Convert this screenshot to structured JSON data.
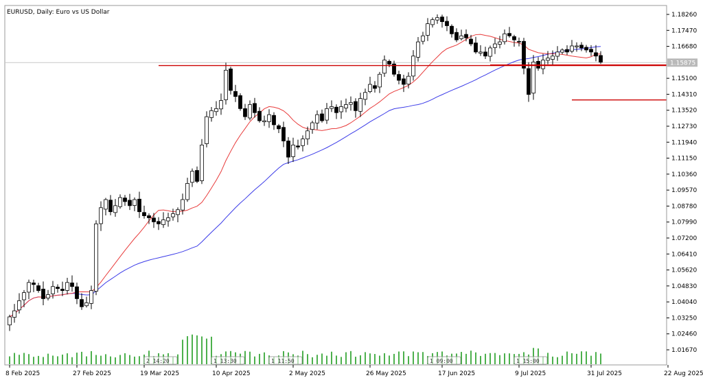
{
  "chart_data": {
    "type": "candlestick",
    "title": "EURUSD, Daily:  Euro vs US Dollar",
    "y_ticks": [
      "1.18260",
      "1.17470",
      "1.16680",
      "1.15100",
      "1.14310",
      "1.13520",
      "1.12730",
      "1.11940",
      "1.11150",
      "1.10360",
      "1.09570",
      "1.08780",
      "1.07990",
      "1.07200",
      "1.06410",
      "1.05620",
      "1.04830",
      "1.04040",
      "1.03250",
      "1.02460",
      "1.01670"
    ],
    "ylim": [
      1.013,
      1.1855
    ],
    "current_price": "1.15875",
    "x_labels": [
      "8 Feb 2025",
      "27 Feb 2025",
      "19 Mar 2025",
      "10 Apr 2025",
      "2 May 2025",
      "26 May 2025",
      "17 Jun 2025",
      "9 Jul 2025",
      "31 Jul 2025",
      "22 Aug 2025"
    ],
    "volume_markers": [
      "2 14:20",
      "1 13:30",
      "1 11:50",
      "1 09:00",
      "1 15:00"
    ],
    "horizontal_lines": [
      {
        "start_index": 100,
        "price": 1.1576
      },
      {
        "start_index": 31,
        "price": 1.1573
      },
      {
        "start_index": 117,
        "price": 1.1403
      }
    ],
    "colors": {
      "bull": "#ffffff",
      "bear": "#000000",
      "ma_fast": "#e83a3a",
      "ma_slow": "#3a3ae8",
      "level": "#cc0000",
      "volume": "#1f9d1f"
    },
    "closes": [
      1.033,
      1.036,
      1.041,
      1.045,
      1.05,
      1.049,
      1.046,
      1.042,
      1.044,
      1.048,
      1.047,
      1.046,
      1.05,
      1.048,
      1.042,
      1.038,
      1.04,
      1.046,
      1.079,
      1.087,
      1.091,
      1.085,
      1.088,
      1.092,
      1.09,
      1.088,
      1.091,
      1.085,
      1.083,
      1.082,
      1.08,
      1.079,
      1.081,
      1.082,
      1.084,
      1.086,
      1.091,
      1.099,
      1.105,
      1.1,
      1.118,
      1.132,
      1.135,
      1.136,
      1.14,
      1.155,
      1.145,
      1.142,
      1.136,
      1.132,
      1.138,
      1.134,
      1.13,
      1.13,
      1.133,
      1.128,
      1.126,
      1.12,
      1.112,
      1.118,
      1.117,
      1.121,
      1.125,
      1.129,
      1.133,
      1.13,
      1.136,
      1.137,
      1.134,
      1.137,
      1.138,
      1.139,
      1.135,
      1.141,
      1.144,
      1.148,
      1.146,
      1.153,
      1.16,
      1.158,
      1.153,
      1.15,
      1.148,
      1.152,
      1.162,
      1.169,
      1.172,
      1.178,
      1.18,
      1.181,
      1.179,
      1.177,
      1.173,
      1.17,
      1.172,
      1.171,
      1.168,
      1.164,
      1.164,
      1.162,
      1.166,
      1.168,
      1.169,
      1.173,
      1.172,
      1.17,
      1.169,
      1.156,
      1.143,
      1.159,
      1.156,
      1.16,
      1.161,
      1.162,
      1.164,
      1.165,
      1.164,
      1.167,
      1.167,
      1.166,
      1.165,
      1.164,
      1.162,
      1.159
    ]
  }
}
